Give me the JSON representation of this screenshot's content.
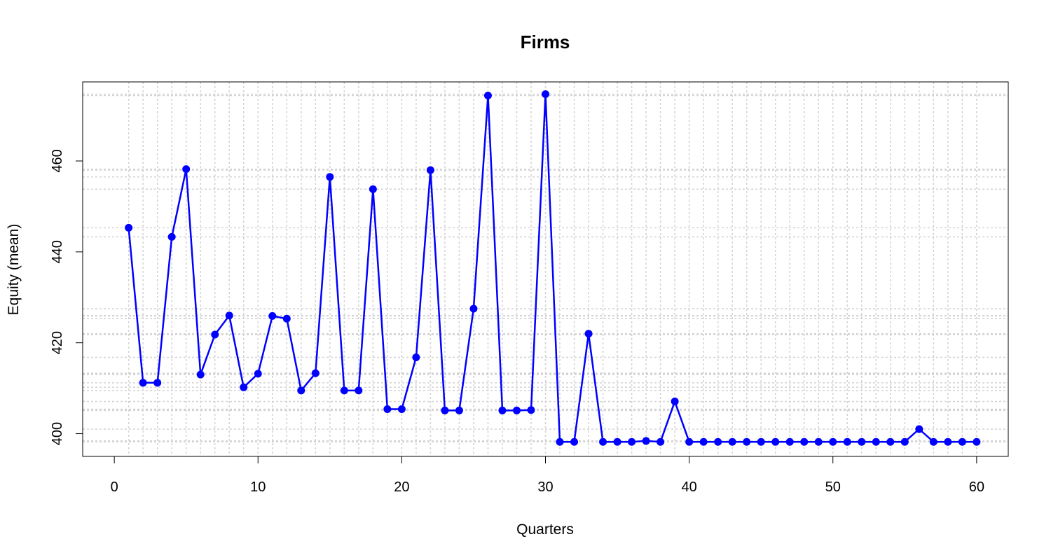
{
  "chart_data": {
    "type": "line",
    "title": "Firms",
    "xlabel": "Quarters",
    "ylabel": "Equity (mean)",
    "xlim": [
      -2.2,
      62.2
    ],
    "ylim": [
      395.0,
      477.4
    ],
    "xticks": [
      0,
      10,
      20,
      30,
      40,
      50,
      60
    ],
    "yticks": [
      400,
      420,
      440,
      460
    ],
    "grid": true,
    "line_color": "#0000ff",
    "grid_color": "#d3d3d3",
    "series": [
      {
        "x": [
          1,
          2,
          3,
          4,
          5,
          6,
          7,
          8,
          9,
          10,
          11,
          12,
          13,
          14,
          15,
          16,
          17,
          18,
          19,
          20,
          21,
          22,
          23,
          24,
          25,
          26,
          27,
          28,
          29,
          30,
          31,
          32,
          33,
          34,
          35,
          36,
          37,
          38,
          39,
          40,
          41,
          42,
          43,
          44,
          45,
          46,
          47,
          48,
          49,
          50,
          51,
          52,
          53,
          54,
          55,
          56,
          57,
          58,
          59,
          60
        ],
        "values": [
          445.3,
          411.2,
          411.2,
          443.3,
          458.2,
          413.0,
          421.8,
          426.0,
          410.2,
          413.2,
          425.9,
          425.3,
          409.5,
          413.3,
          456.5,
          409.5,
          409.5,
          453.8,
          405.4,
          405.4,
          416.8,
          458.0,
          405.1,
          405.1,
          427.5,
          474.4,
          405.1,
          405.1,
          405.2,
          474.7,
          398.2,
          398.2,
          422.0,
          398.2,
          398.2,
          398.2,
          398.4,
          398.2,
          407.1,
          398.2,
          398.2,
          398.2,
          398.2,
          398.2,
          398.2,
          398.2,
          398.2,
          398.2,
          398.2,
          398.2,
          398.2,
          398.2,
          398.2,
          398.2,
          398.2,
          401.0,
          398.2,
          398.2,
          398.2,
          398.2
        ]
      }
    ]
  }
}
